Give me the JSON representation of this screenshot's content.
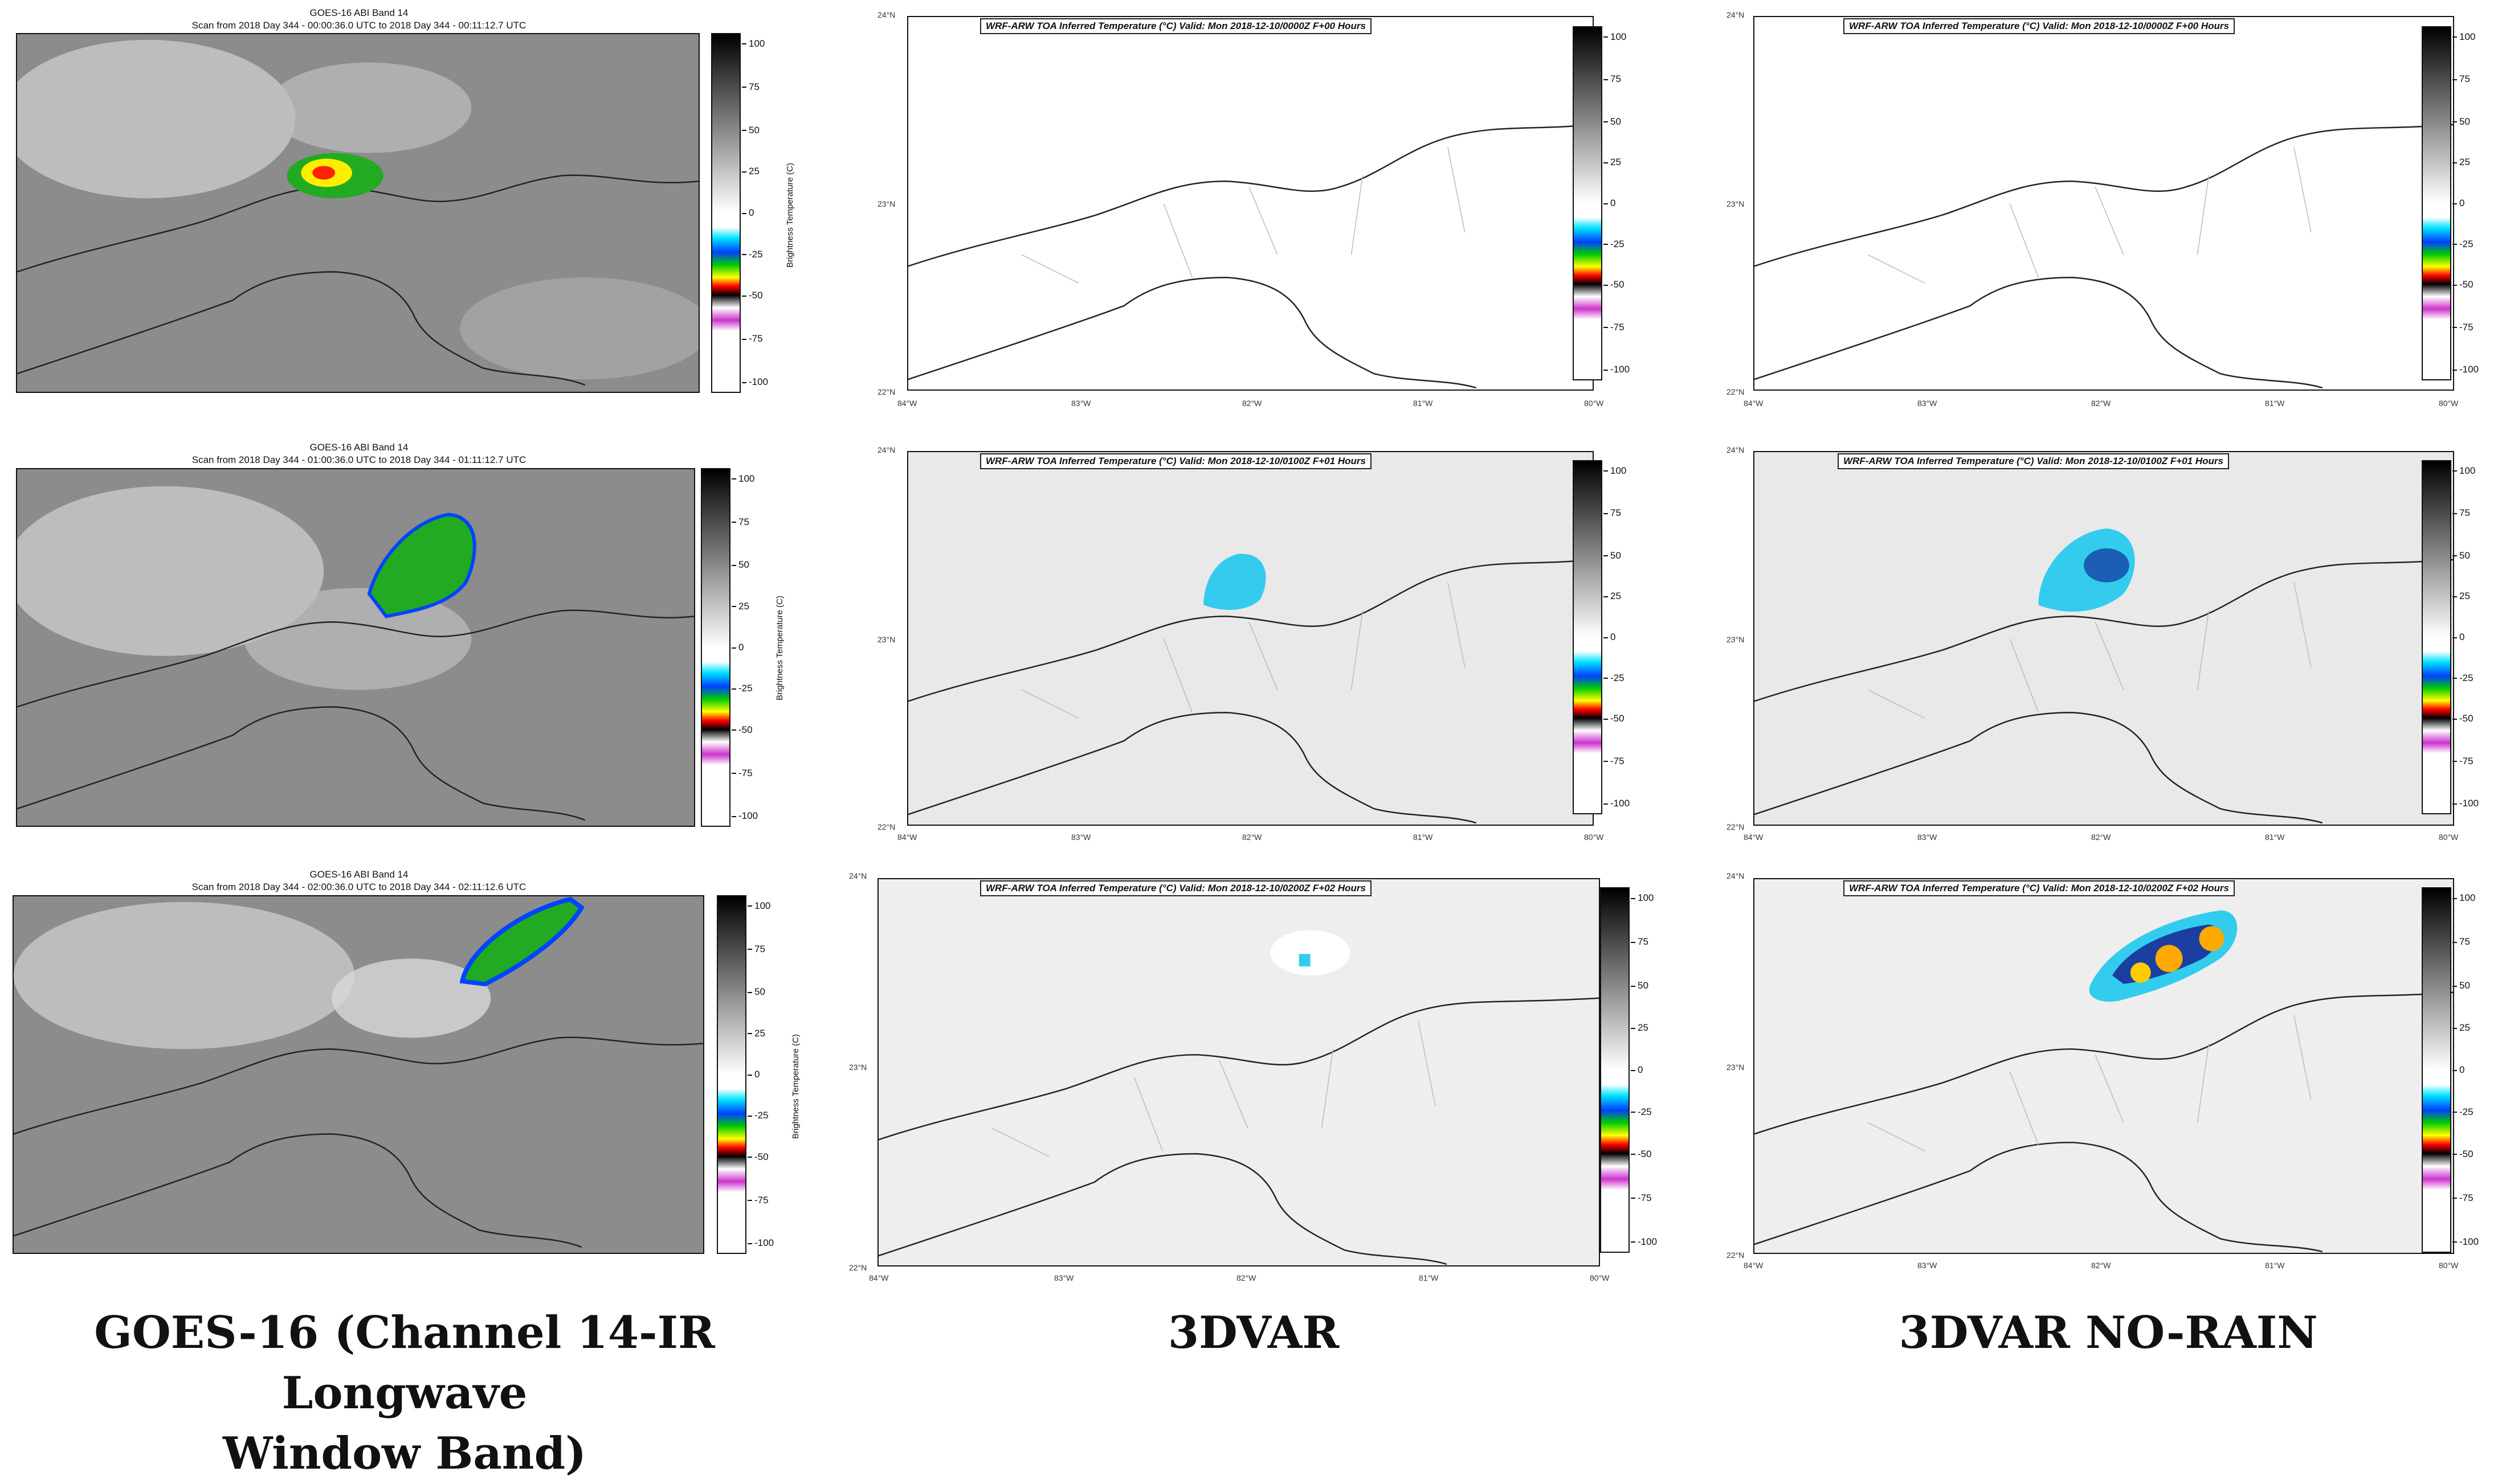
{
  "goes": {
    "panels": [
      {
        "title": "GOES-16 ABI Band 14",
        "subtitle": "Scan from 2018 Day 344 - 00:00:36.0 UTC to 2018 Day 344 - 00:11:12.7 UTC"
      },
      {
        "title": "GOES-16 ABI Band 14",
        "subtitle": "Scan from 2018 Day 344 - 01:00:36.0 UTC to 2018 Day 344 - 01:11:12.7 UTC"
      },
      {
        "title": "GOES-16 ABI Band 14",
        "subtitle": "Scan from 2018 Day 344 - 02:00:36.0 UTC to 2018 Day 344 - 02:11:12.6 UTC"
      }
    ],
    "colorbar_label": "Brightness Temperature (C)"
  },
  "wrf": {
    "titles": [
      "WRF-ARW TOA Inferred Temperature (°C)   Valid: Mon 2018-12-10/0000Z F+00 Hours",
      "WRF-ARW TOA Inferred Temperature (°C)   Valid: Mon 2018-12-10/0100Z F+01 Hours",
      "WRF-ARW TOA Inferred Temperature (°C)   Valid: Mon 2018-12-10/0200Z F+02 Hours"
    ],
    "lat_labels": [
      "24°N",
      "23°N",
      "22°N"
    ],
    "lon_labels": [
      "84°W",
      "83°W",
      "82°W",
      "81°W",
      "80°W"
    ]
  },
  "colorbar_ticks": [
    "100",
    "75",
    "50",
    "25",
    "0",
    "-25",
    "-50",
    "-75",
    "-100"
  ],
  "captions": {
    "goes_line1": "GOES-16 (Channel 14-IR Longwave",
    "goes_line2": "Window Band)",
    "dvar": "3DVAR",
    "norain": "3DVAR NO-RAIN"
  }
}
